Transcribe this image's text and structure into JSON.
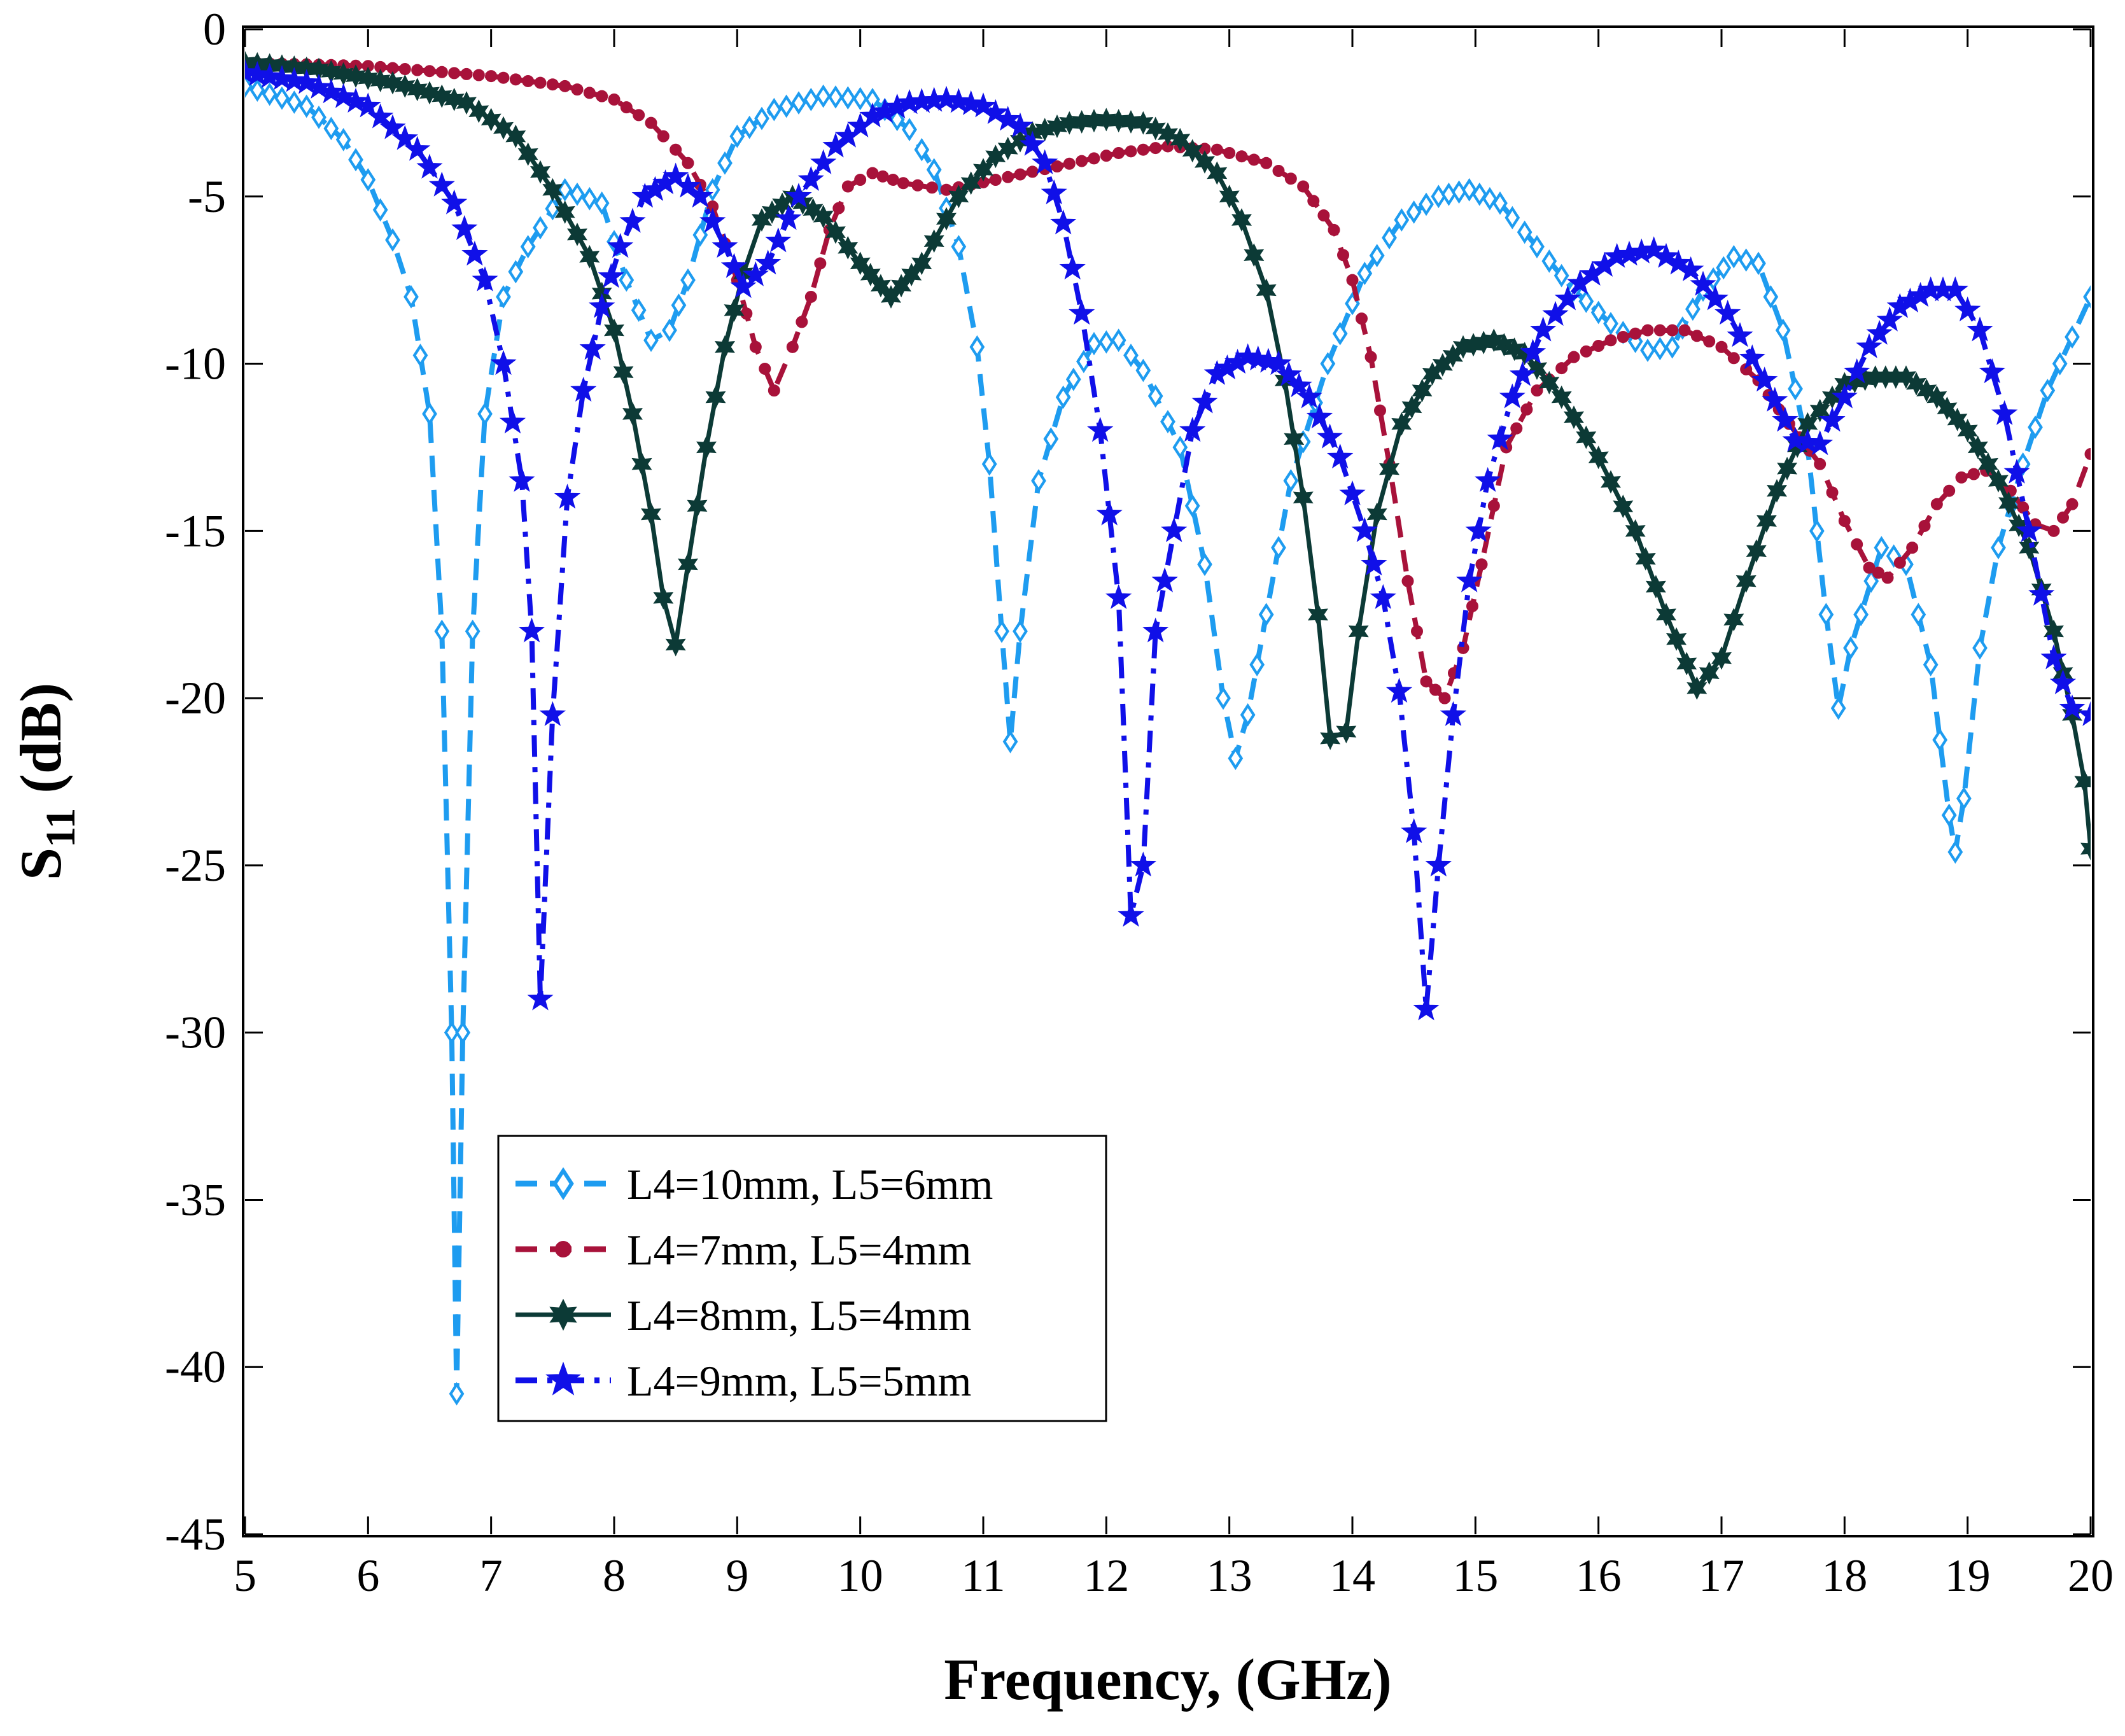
{
  "chart_data": {
    "type": "line",
    "title": "",
    "xlabel": "Frequency, (GHz)",
    "ylabel_main": "S",
    "ylabel_sub": "11",
    "ylabel_unit": " (dB)",
    "xlim": [
      5,
      20
    ],
    "ylim": [
      -45,
      0
    ],
    "xticks": [
      "5",
      "6",
      "7",
      "8",
      "9",
      "10",
      "11",
      "12",
      "13",
      "14",
      "15",
      "16",
      "17",
      "18",
      "19",
      "20"
    ],
    "yticks": [
      "0",
      "-5",
      "-10",
      "-15",
      "-20",
      "-25",
      "-30",
      "-35",
      "-40",
      "-45"
    ],
    "legend_position": "lower-left",
    "series": [
      {
        "name": "L4=10mm, L5=6mm",
        "color": "#1E9CF0",
        "dash": "dashed",
        "marker": "diamond",
        "points": [
          [
            5.0,
            -1.7
          ],
          [
            5.5,
            -2.3
          ],
          [
            5.8,
            -3.3
          ],
          [
            6.0,
            -4.5
          ],
          [
            6.2,
            -6.3
          ],
          [
            6.35,
            -8.0
          ],
          [
            6.5,
            -11.5
          ],
          [
            6.6,
            -18.0
          ],
          [
            6.68,
            -30.0
          ],
          [
            6.72,
            -40.8
          ],
          [
            6.77,
            -30.0
          ],
          [
            6.85,
            -18.0
          ],
          [
            6.95,
            -11.5
          ],
          [
            7.1,
            -8.0
          ],
          [
            7.3,
            -6.5
          ],
          [
            7.6,
            -4.8
          ],
          [
            7.9,
            -5.2
          ],
          [
            8.1,
            -7.5
          ],
          [
            8.3,
            -9.3
          ],
          [
            8.45,
            -9.0
          ],
          [
            8.6,
            -7.5
          ],
          [
            8.8,
            -4.8
          ],
          [
            9.0,
            -3.2
          ],
          [
            9.3,
            -2.4
          ],
          [
            9.7,
            -2.0
          ],
          [
            10.1,
            -2.1
          ],
          [
            10.4,
            -3.0
          ],
          [
            10.6,
            -4.2
          ],
          [
            10.8,
            -6.5
          ],
          [
            10.95,
            -9.5
          ],
          [
            11.05,
            -13.0
          ],
          [
            11.15,
            -18.0
          ],
          [
            11.22,
            -21.3
          ],
          [
            11.3,
            -18.0
          ],
          [
            11.45,
            -13.5
          ],
          [
            11.65,
            -11.0
          ],
          [
            11.9,
            -9.4
          ],
          [
            12.1,
            -9.3
          ],
          [
            12.3,
            -10.2
          ],
          [
            12.6,
            -12.5
          ],
          [
            12.8,
            -16.0
          ],
          [
            12.95,
            -20.0
          ],
          [
            13.05,
            -21.8
          ],
          [
            13.15,
            -20.5
          ],
          [
            13.3,
            -17.5
          ],
          [
            13.5,
            -13.5
          ],
          [
            13.8,
            -10.0
          ],
          [
            14.1,
            -7.3
          ],
          [
            14.4,
            -5.7
          ],
          [
            14.7,
            -5.0
          ],
          [
            14.95,
            -4.8
          ],
          [
            15.2,
            -5.2
          ],
          [
            15.5,
            -6.5
          ],
          [
            15.8,
            -7.8
          ],
          [
            16.1,
            -8.8
          ],
          [
            16.4,
            -9.6
          ],
          [
            16.6,
            -9.5
          ],
          [
            16.85,
            -7.8
          ],
          [
            17.1,
            -6.8
          ],
          [
            17.3,
            -7.0
          ],
          [
            17.5,
            -9.0
          ],
          [
            17.7,
            -12.5
          ],
          [
            17.85,
            -17.5
          ],
          [
            17.95,
            -20.3
          ],
          [
            18.05,
            -18.5
          ],
          [
            18.3,
            -15.5
          ],
          [
            18.5,
            -16.0
          ],
          [
            18.7,
            -19.0
          ],
          [
            18.85,
            -23.5
          ],
          [
            18.9,
            -24.6
          ],
          [
            18.97,
            -23.0
          ],
          [
            19.1,
            -18.5
          ],
          [
            19.25,
            -15.5
          ],
          [
            19.45,
            -13.0
          ],
          [
            19.65,
            -10.8
          ],
          [
            19.85,
            -9.2
          ],
          [
            20.0,
            -8.0
          ]
        ]
      },
      {
        "name": "L4=7mm, L5=4mm",
        "color": "#A8123A",
        "dash": "dashed",
        "marker": "circle",
        "points": [
          [
            5.0,
            -1.0
          ],
          [
            6.0,
            -1.1
          ],
          [
            7.0,
            -1.4
          ],
          [
            7.6,
            -1.7
          ],
          [
            8.0,
            -2.1
          ],
          [
            8.3,
            -2.8
          ],
          [
            8.6,
            -4.0
          ],
          [
            8.8,
            -5.3
          ],
          [
            9.0,
            -7.5
          ],
          [
            9.15,
            -9.5
          ],
          [
            9.3,
            -10.8
          ],
          [
            9.45,
            -9.5
          ],
          [
            9.6,
            -8.0
          ],
          [
            9.75,
            -6.0
          ],
          [
            9.9,
            -4.7
          ],
          [
            10.1,
            -4.3
          ],
          [
            10.35,
            -4.6
          ],
          [
            10.7,
            -4.8
          ],
          [
            11.1,
            -4.5
          ],
          [
            11.6,
            -4.1
          ],
          [
            12.1,
            -3.7
          ],
          [
            12.5,
            -3.5
          ],
          [
            12.9,
            -3.6
          ],
          [
            13.3,
            -4.0
          ],
          [
            13.6,
            -4.7
          ],
          [
            13.85,
            -6.0
          ],
          [
            14.0,
            -7.5
          ],
          [
            14.15,
            -9.8
          ],
          [
            14.3,
            -13.0
          ],
          [
            14.45,
            -16.5
          ],
          [
            14.6,
            -19.5
          ],
          [
            14.75,
            -20.0
          ],
          [
            14.9,
            -18.5
          ],
          [
            15.05,
            -16.0
          ],
          [
            15.25,
            -12.5
          ],
          [
            15.5,
            -10.8
          ],
          [
            15.8,
            -9.8
          ],
          [
            16.1,
            -9.3
          ],
          [
            16.4,
            -9.0
          ],
          [
            16.7,
            -9.0
          ],
          [
            17.0,
            -9.5
          ],
          [
            17.3,
            -10.5
          ],
          [
            17.55,
            -11.8
          ],
          [
            17.8,
            -13.0
          ],
          [
            18.0,
            -14.7
          ],
          [
            18.2,
            -16.1
          ],
          [
            18.35,
            -16.4
          ],
          [
            18.55,
            -15.5
          ],
          [
            18.75,
            -14.2
          ],
          [
            18.95,
            -13.4
          ],
          [
            19.15,
            -13.2
          ],
          [
            19.35,
            -13.8
          ],
          [
            19.55,
            -14.8
          ],
          [
            19.7,
            -15.0
          ],
          [
            19.85,
            -14.2
          ],
          [
            20.0,
            -12.7
          ]
        ]
      },
      {
        "name": "L4=8mm, L5=4mm",
        "color": "#0C3A36",
        "dash": "solid",
        "marker": "star6",
        "points": [
          [
            5.0,
            -1.0
          ],
          [
            5.6,
            -1.2
          ],
          [
            6.2,
            -1.6
          ],
          [
            6.8,
            -2.2
          ],
          [
            7.2,
            -3.2
          ],
          [
            7.5,
            -4.8
          ],
          [
            7.8,
            -6.8
          ],
          [
            8.0,
            -9.0
          ],
          [
            8.15,
            -11.5
          ],
          [
            8.3,
            -14.5
          ],
          [
            8.4,
            -17.0
          ],
          [
            8.5,
            -18.4
          ],
          [
            8.6,
            -16.0
          ],
          [
            8.75,
            -12.5
          ],
          [
            8.9,
            -9.5
          ],
          [
            9.05,
            -7.3
          ],
          [
            9.2,
            -5.7
          ],
          [
            9.45,
            -5.0
          ],
          [
            9.7,
            -5.6
          ],
          [
            10.0,
            -7.0
          ],
          [
            10.25,
            -8.0
          ],
          [
            10.5,
            -7.0
          ],
          [
            10.8,
            -5.0
          ],
          [
            11.1,
            -3.8
          ],
          [
            11.4,
            -3.1
          ],
          [
            11.7,
            -2.8
          ],
          [
            12.0,
            -2.7
          ],
          [
            12.3,
            -2.8
          ],
          [
            12.6,
            -3.3
          ],
          [
            12.9,
            -4.3
          ],
          [
            13.1,
            -5.7
          ],
          [
            13.3,
            -7.8
          ],
          [
            13.45,
            -10.5
          ],
          [
            13.6,
            -14.0
          ],
          [
            13.72,
            -17.5
          ],
          [
            13.82,
            -21.2
          ],
          [
            13.95,
            -21.0
          ],
          [
            14.05,
            -18.0
          ],
          [
            14.2,
            -14.5
          ],
          [
            14.4,
            -11.8
          ],
          [
            14.65,
            -10.3
          ],
          [
            14.9,
            -9.5
          ],
          [
            15.15,
            -9.3
          ],
          [
            15.4,
            -9.7
          ],
          [
            15.7,
            -11.0
          ],
          [
            16.0,
            -12.8
          ],
          [
            16.3,
            -15.0
          ],
          [
            16.55,
            -17.5
          ],
          [
            16.8,
            -19.7
          ],
          [
            17.0,
            -18.8
          ],
          [
            17.2,
            -16.5
          ],
          [
            17.45,
            -13.8
          ],
          [
            17.7,
            -11.8
          ],
          [
            18.0,
            -10.6
          ],
          [
            18.25,
            -10.4
          ],
          [
            18.5,
            -10.4
          ],
          [
            18.75,
            -11.0
          ],
          [
            19.0,
            -12.0
          ],
          [
            19.25,
            -13.5
          ],
          [
            19.5,
            -15.5
          ],
          [
            19.7,
            -18.0
          ],
          [
            19.85,
            -20.5
          ],
          [
            19.95,
            -22.5
          ],
          [
            20.0,
            -24.5
          ]
        ]
      },
      {
        "name": "L4=9mm, L5=5mm",
        "color": "#1010E8",
        "dash": "dashdot",
        "marker": "star5",
        "points": [
          [
            5.0,
            -1.3
          ],
          [
            5.5,
            -1.6
          ],
          [
            6.0,
            -2.3
          ],
          [
            6.4,
            -3.6
          ],
          [
            6.7,
            -5.2
          ],
          [
            6.95,
            -7.5
          ],
          [
            7.1,
            -10.0
          ],
          [
            7.25,
            -13.5
          ],
          [
            7.33,
            -18.0
          ],
          [
            7.4,
            -29.0
          ],
          [
            7.5,
            -20.5
          ],
          [
            7.62,
            -14.0
          ],
          [
            7.75,
            -10.8
          ],
          [
            7.9,
            -8.3
          ],
          [
            8.05,
            -6.5
          ],
          [
            8.25,
            -5.0
          ],
          [
            8.5,
            -4.4
          ],
          [
            8.7,
            -5.0
          ],
          [
            8.9,
            -6.5
          ],
          [
            9.05,
            -7.7
          ],
          [
            9.25,
            -7.0
          ],
          [
            9.5,
            -5.0
          ],
          [
            9.8,
            -3.5
          ],
          [
            10.1,
            -2.6
          ],
          [
            10.4,
            -2.2
          ],
          [
            10.7,
            -2.1
          ],
          [
            11.0,
            -2.3
          ],
          [
            11.3,
            -2.9
          ],
          [
            11.5,
            -4.0
          ],
          [
            11.65,
            -5.8
          ],
          [
            11.8,
            -8.5
          ],
          [
            11.95,
            -12.0
          ],
          [
            12.1,
            -17.0
          ],
          [
            12.2,
            -26.5
          ],
          [
            12.3,
            -25.0
          ],
          [
            12.4,
            -18.0
          ],
          [
            12.55,
            -15.0
          ],
          [
            12.7,
            -12.0
          ],
          [
            12.9,
            -10.3
          ],
          [
            13.15,
            -9.8
          ],
          [
            13.4,
            -10.0
          ],
          [
            13.65,
            -11.0
          ],
          [
            13.9,
            -12.8
          ],
          [
            14.1,
            -15.0
          ],
          [
            14.25,
            -17.0
          ],
          [
            14.38,
            -19.8
          ],
          [
            14.5,
            -24.0
          ],
          [
            14.6,
            -29.3
          ],
          [
            14.7,
            -25.0
          ],
          [
            14.82,
            -20.5
          ],
          [
            14.95,
            -16.5
          ],
          [
            15.1,
            -13.5
          ],
          [
            15.3,
            -11.0
          ],
          [
            15.55,
            -9.0
          ],
          [
            15.85,
            -7.6
          ],
          [
            16.15,
            -6.8
          ],
          [
            16.45,
            -6.6
          ],
          [
            16.75,
            -7.2
          ],
          [
            17.05,
            -8.5
          ],
          [
            17.35,
            -10.5
          ],
          [
            17.6,
            -12.3
          ],
          [
            17.8,
            -12.4
          ],
          [
            18.0,
            -11.0
          ],
          [
            18.2,
            -9.5
          ],
          [
            18.45,
            -8.3
          ],
          [
            18.7,
            -7.8
          ],
          [
            18.9,
            -7.8
          ],
          [
            19.1,
            -9.0
          ],
          [
            19.3,
            -11.5
          ],
          [
            19.5,
            -15.0
          ],
          [
            19.7,
            -18.8
          ],
          [
            19.85,
            -20.3
          ],
          [
            20.0,
            -20.5
          ]
        ]
      }
    ]
  }
}
